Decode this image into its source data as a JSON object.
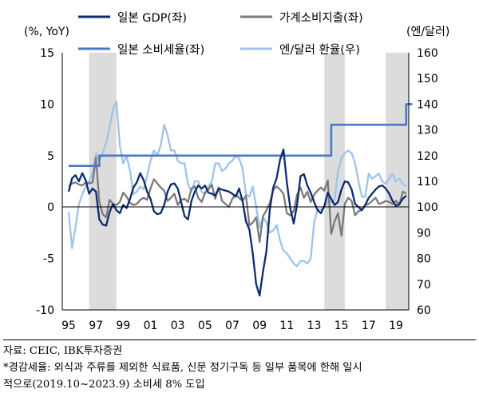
{
  "chart_data": {
    "type": "line",
    "left_axis_unit": "(%, YoY)",
    "right_axis_unit": "(엔/달러)",
    "left_ylim": [
      -10,
      15
    ],
    "right_ylim": [
      60,
      160
    ],
    "left_ticks": [
      "15",
      "10",
      "5",
      "0",
      "-5",
      "-10"
    ],
    "right_ticks": [
      "160",
      "150",
      "140",
      "130",
      "120",
      "110",
      "100",
      "90",
      "80",
      "70",
      "60"
    ],
    "x_ticks": [
      "95",
      "97",
      "99",
      "01",
      "03",
      "05",
      "07",
      "09",
      "11",
      "13",
      "15",
      "17",
      "19"
    ],
    "xlim": [
      1995,
      2020.2
    ],
    "grid": false,
    "legend_position": "top",
    "shaded_periods": [
      [
        1996.5,
        1998.5
      ],
      [
        2013.75,
        2015.25
      ],
      [
        2018.25,
        2020.2
      ]
    ],
    "series": [
      {
        "name": "일본 GDP(좌)",
        "axis": "left",
        "color": "#0d2a6e",
        "x": [
          1995.0,
          1995.25,
          1995.5,
          1995.75,
          1996.0,
          1996.25,
          1996.5,
          1996.75,
          1997.0,
          1997.25,
          1997.5,
          1997.75,
          1998.0,
          1998.25,
          1998.5,
          1998.75,
          1999.0,
          1999.25,
          1999.5,
          1999.75,
          2000.0,
          2000.25,
          2000.5,
          2000.75,
          2001.0,
          2001.25,
          2001.5,
          2001.75,
          2002.0,
          2002.25,
          2002.5,
          2002.75,
          2003.0,
          2003.25,
          2003.5,
          2003.75,
          2004.0,
          2004.25,
          2004.5,
          2004.75,
          2005.0,
          2005.25,
          2005.5,
          2005.75,
          2006.0,
          2006.25,
          2006.5,
          2006.75,
          2007.0,
          2007.25,
          2007.5,
          2007.75,
          2008.0,
          2008.25,
          2008.5,
          2008.75,
          2009.0,
          2009.25,
          2009.5,
          2009.75,
          2010.0,
          2010.25,
          2010.5,
          2010.75,
          2011.0,
          2011.25,
          2011.5,
          2011.75,
          2012.0,
          2012.25,
          2012.5,
          2012.75,
          2013.0,
          2013.25,
          2013.5,
          2013.75,
          2014.0,
          2014.25,
          2014.5,
          2014.75,
          2015.0,
          2015.25,
          2015.5,
          2015.75,
          2016.0,
          2016.25,
          2016.5,
          2016.75,
          2017.0,
          2017.25,
          2017.5,
          2017.75,
          2018.0,
          2018.25,
          2018.5,
          2018.75,
          2019.0,
          2019.25,
          2019.5,
          2019.75
        ],
        "values": [
          1.5,
          2.8,
          3.1,
          2.5,
          3.3,
          2.6,
          1.3,
          1.8,
          1.5,
          -1.2,
          -1.7,
          -1.8,
          -0.5,
          0.3,
          -0.3,
          -0.6,
          0.2,
          -0.1,
          0.8,
          1.9,
          2.4,
          3.3,
          2.6,
          1.5,
          0.8,
          -0.4,
          -0.7,
          -0.6,
          0.2,
          1.5,
          2.2,
          2.3,
          1.8,
          0.5,
          -0.9,
          -1.2,
          0.6,
          1.5,
          2.1,
          1.8,
          2.1,
          1.4,
          1.3,
          1.1,
          1.8,
          1.7,
          1.6,
          1.5,
          1.3,
          1.0,
          1.8,
          0.6,
          -1.4,
          -2.2,
          -4.5,
          -7.5,
          -8.6,
          -6.3,
          -4.3,
          -0.2,
          1.9,
          2.8,
          4.6,
          5.6,
          2.4,
          -0.1,
          -1.6,
          0.2,
          3.0,
          3.2,
          2.1,
          1.4,
          0.5,
          -0.3,
          -0.6,
          0.1,
          1.4,
          0.8,
          0.2,
          0.5,
          1.7,
          2.5,
          2.4,
          1.7,
          0.3,
          0.0,
          -0.3,
          0.2,
          0.9,
          1.3,
          1.7,
          2.0,
          2.1,
          1.8,
          1.3,
          0.6,
          0.1,
          0.3,
          0.8,
          1.1
        ]
      },
      {
        "name": "가계소비지출(좌)",
        "axis": "left",
        "color": "#7a7a7a",
        "x": [
          1995.0,
          1995.25,
          1995.5,
          1995.75,
          1996.0,
          1996.25,
          1996.5,
          1996.75,
          1997.0,
          1997.25,
          1997.5,
          1997.75,
          1998.0,
          1998.25,
          1998.5,
          1998.75,
          1999.0,
          1999.25,
          1999.5,
          1999.75,
          2000.0,
          2000.25,
          2000.5,
          2000.75,
          2001.0,
          2001.25,
          2001.5,
          2001.75,
          2002.0,
          2002.25,
          2002.5,
          2002.75,
          2003.0,
          2003.25,
          2003.5,
          2003.75,
          2004.0,
          2004.25,
          2004.5,
          2004.75,
          2005.0,
          2005.25,
          2005.5,
          2005.75,
          2006.0,
          2006.25,
          2006.5,
          2006.75,
          2007.0,
          2007.25,
          2007.5,
          2007.75,
          2008.0,
          2008.25,
          2008.5,
          2008.75,
          2009.0,
          2009.25,
          2009.5,
          2009.75,
          2010.0,
          2010.25,
          2010.5,
          2010.75,
          2011.0,
          2011.25,
          2011.5,
          2011.75,
          2012.0,
          2012.25,
          2012.5,
          2012.75,
          2013.0,
          2013.25,
          2013.5,
          2013.75,
          2014.0,
          2014.25,
          2014.5,
          2014.75,
          2015.0,
          2015.25,
          2015.5,
          2015.75,
          2016.0,
          2016.25,
          2016.5,
          2016.75,
          2017.0,
          2017.25,
          2017.5,
          2017.75,
          2018.0,
          2018.25,
          2018.5,
          2018.75,
          2019.0,
          2019.25,
          2019.5,
          2019.75
        ],
        "values": [
          2.0,
          2.3,
          2.4,
          2.2,
          2.1,
          2.4,
          2.3,
          2.4,
          4.8,
          0.5,
          -0.7,
          -1.0,
          0.7,
          0.3,
          0.2,
          0.5,
          1.4,
          1.0,
          0.4,
          0.2,
          0.3,
          0.7,
          0.9,
          0.7,
          1.8,
          2.7,
          2.3,
          1.9,
          1.6,
          0.6,
          0.9,
          1.3,
          0.2,
          0.7,
          0.8,
          0.5,
          1.8,
          2.0,
          0.9,
          0.5,
          1.4,
          1.7,
          2.2,
          0.8,
          1.9,
          0.6,
          0.3,
          0.0,
          0.8,
          1.2,
          0.9,
          0.6,
          1.1,
          -1.8,
          -1.5,
          -1.0,
          -3.4,
          -0.9,
          -0.3,
          0.4,
          1.7,
          2.0,
          1.7,
          1.3,
          -0.6,
          -0.8,
          -0.4,
          1.2,
          1.9,
          0.9,
          1.5,
          0.5,
          1.2,
          1.6,
          1.9,
          1.6,
          2.6,
          -2.6,
          -1.4,
          -0.6,
          -2.8,
          0.3,
          0.9,
          0.6,
          -0.8,
          -0.4,
          -0.3,
          0.2,
          0.3,
          0.6,
          0.9,
          0.3,
          0.4,
          0.6,
          0.5,
          0.3,
          0.6,
          0.2,
          1.5,
          1.3
        ]
      },
      {
        "name": "일본 소비세율(좌)",
        "axis": "left",
        "color": "#4a78c6",
        "x": [
          1995.0,
          1997.25,
          1997.25,
          2014.25,
          2014.25,
          2019.75,
          2019.75,
          2020.2
        ],
        "values": [
          4,
          4,
          5,
          5,
          8,
          8,
          10,
          10
        ]
      },
      {
        "name": "엔/달러 환율(우)",
        "axis": "right",
        "color": "#9fc3ea",
        "x": [
          1995.0,
          1995.25,
          1995.5,
          1995.75,
          1996.0,
          1996.25,
          1996.5,
          1996.75,
          1997.0,
          1997.25,
          1997.5,
          1997.75,
          1998.0,
          1998.25,
          1998.5,
          1998.75,
          1999.0,
          1999.25,
          1999.5,
          1999.75,
          2000.0,
          2000.25,
          2000.5,
          2000.75,
          2001.0,
          2001.25,
          2001.5,
          2001.75,
          2002.0,
          2002.25,
          2002.5,
          2002.75,
          2003.0,
          2003.25,
          2003.5,
          2003.75,
          2004.0,
          2004.25,
          2004.5,
          2004.75,
          2005.0,
          2005.25,
          2005.5,
          2005.75,
          2006.0,
          2006.25,
          2006.5,
          2006.75,
          2007.0,
          2007.25,
          2007.5,
          2007.75,
          2008.0,
          2008.25,
          2008.5,
          2008.75,
          2009.0,
          2009.25,
          2009.5,
          2009.75,
          2010.0,
          2010.25,
          2010.5,
          2010.75,
          2011.0,
          2011.25,
          2011.5,
          2011.75,
          2012.0,
          2012.25,
          2012.5,
          2012.75,
          2013.0,
          2013.25,
          2013.5,
          2013.75,
          2014.0,
          2014.25,
          2014.5,
          2014.75,
          2015.0,
          2015.25,
          2015.5,
          2015.75,
          2016.0,
          2016.25,
          2016.5,
          2016.75,
          2017.0,
          2017.25,
          2017.5,
          2017.75,
          2018.0,
          2018.25,
          2018.5,
          2018.75,
          2019.0,
          2019.25,
          2019.5,
          2019.75
        ],
        "values": [
          98,
          84,
          92,
          101,
          105,
          108,
          110,
          113,
          121,
          118,
          121,
          125,
          131,
          138,
          141,
          124,
          117,
          120,
          114,
          105,
          106,
          108,
          107,
          112,
          118,
          122,
          120,
          124,
          132,
          128,
          122,
          122,
          118,
          117,
          117,
          109,
          106,
          110,
          110,
          106,
          105,
          108,
          110,
          117,
          117,
          114,
          115,
          117,
          118,
          120,
          119,
          115,
          105,
          104,
          108,
          100,
          92,
          96,
          94,
          90,
          91,
          93,
          87,
          83,
          82,
          80,
          78,
          77,
          79,
          79,
          78,
          80,
          94,
          99,
          99,
          100,
          102,
          102,
          103,
          114,
          119,
          121,
          122,
          121,
          117,
          110,
          104,
          104,
          113,
          111,
          112,
          113,
          110,
          109,
          111,
          113,
          110,
          111,
          109,
          108
        ]
      }
    ]
  },
  "notes": {
    "source": "자료: CEIC, IBK투자증권",
    "note_line1": "*경감세율: 외식과 주류를 제외한 식료품, 신문 정기구독 등 일부 품목에 한해 일시",
    "note_line2": "적으로(2019.10~2023.9) 소비세 8% 도입"
  }
}
